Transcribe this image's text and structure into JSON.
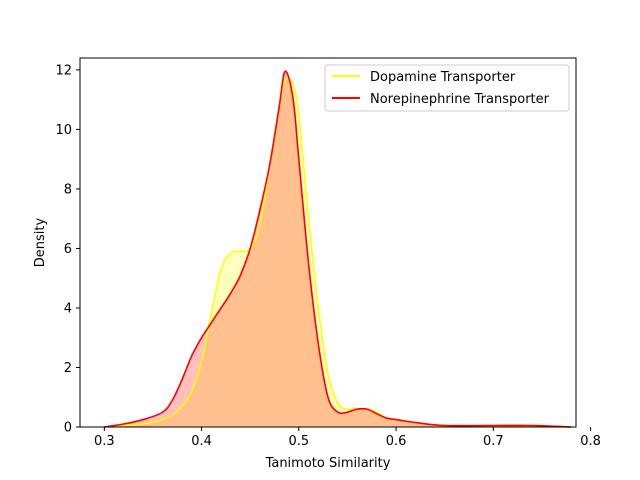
{
  "chart_data": {
    "type": "area",
    "title": "",
    "xlabel": "Tanimoto Similarity",
    "ylabel": "Density",
    "xlim": [
      0.275,
      0.785
    ],
    "ylim": [
      0,
      12.4
    ],
    "xticks": [
      0.3,
      0.4,
      0.5,
      0.6,
      0.7,
      0.8
    ],
    "xtick_labels": [
      "0.3",
      "0.4",
      "0.5",
      "0.6",
      "0.7",
      "0.8"
    ],
    "yticks": [
      0,
      2,
      4,
      6,
      8,
      10,
      12
    ],
    "ytick_labels": [
      "0",
      "2",
      "4",
      "6",
      "8",
      "10",
      "12"
    ],
    "legend_position": "top-right",
    "grid": false,
    "series": [
      {
        "name": "Dopamine Transporter",
        "line_color": "#ffff00",
        "fill_color": "#ffff00",
        "x": [
          0.3,
          0.32,
          0.34,
          0.36,
          0.37,
          0.38,
          0.39,
          0.4,
          0.41,
          0.42,
          0.43,
          0.44,
          0.45,
          0.46,
          0.47,
          0.48,
          0.485,
          0.49,
          0.495,
          0.5,
          0.51,
          0.52,
          0.53,
          0.54,
          0.55,
          0.56,
          0.57,
          0.58,
          0.59,
          0.6,
          0.62,
          0.65,
          0.7,
          0.74,
          0.78
        ],
        "y": [
          0.0,
          0.05,
          0.1,
          0.25,
          0.4,
          0.7,
          1.2,
          2.2,
          3.8,
          5.3,
          5.85,
          5.9,
          6.0,
          6.8,
          8.8,
          10.8,
          11.6,
          11.7,
          11.4,
          10.5,
          7.0,
          4.0,
          1.8,
          0.8,
          0.6,
          0.62,
          0.6,
          0.5,
          0.3,
          0.25,
          0.15,
          0.05,
          0.05,
          0.05,
          0.0
        ]
      },
      {
        "name": "Norepinephrine Transporter",
        "line_color": "#ff0000",
        "fill_color": "#ff0000",
        "x": [
          0.3,
          0.32,
          0.34,
          0.36,
          0.37,
          0.38,
          0.39,
          0.4,
          0.41,
          0.42,
          0.43,
          0.44,
          0.45,
          0.46,
          0.47,
          0.48,
          0.485,
          0.49,
          0.495,
          0.5,
          0.51,
          0.52,
          0.53,
          0.54,
          0.55,
          0.56,
          0.57,
          0.58,
          0.59,
          0.6,
          0.62,
          0.65,
          0.7,
          0.74,
          0.78
        ],
        "y": [
          0.0,
          0.1,
          0.25,
          0.5,
          0.9,
          1.6,
          2.4,
          3.0,
          3.5,
          4.0,
          4.5,
          5.1,
          6.0,
          7.3,
          8.8,
          10.8,
          11.9,
          11.7,
          10.8,
          9.0,
          5.5,
          2.8,
          1.0,
          0.5,
          0.5,
          0.6,
          0.6,
          0.45,
          0.3,
          0.25,
          0.15,
          0.05,
          0.05,
          0.05,
          0.0
        ]
      }
    ]
  }
}
